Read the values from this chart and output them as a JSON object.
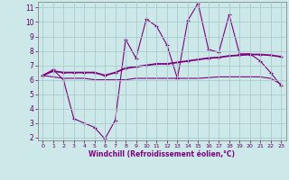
{
  "xlabel": "Windchill (Refroidissement éolien,°C)",
  "x": [
    0,
    1,
    2,
    3,
    4,
    5,
    6,
    7,
    8,
    9,
    10,
    11,
    12,
    13,
    14,
    15,
    16,
    17,
    18,
    19,
    20,
    21,
    22,
    23
  ],
  "line1": [
    6.3,
    6.7,
    6.0,
    3.3,
    3.0,
    2.7,
    1.9,
    3.2,
    8.8,
    7.5,
    10.2,
    9.7,
    8.4,
    6.1,
    10.1,
    11.3,
    8.1,
    7.9,
    10.5,
    7.8,
    7.8,
    7.3,
    6.5,
    5.6
  ],
  "line2": [
    6.3,
    6.6,
    6.5,
    6.5,
    6.5,
    6.5,
    6.3,
    6.5,
    6.8,
    6.9,
    7.0,
    7.1,
    7.1,
    7.2,
    7.3,
    7.4,
    7.5,
    7.55,
    7.65,
    7.7,
    7.75,
    7.75,
    7.7,
    7.6
  ],
  "line3": [
    6.3,
    6.2,
    6.1,
    6.1,
    6.1,
    6.0,
    6.0,
    6.0,
    6.0,
    6.1,
    6.1,
    6.1,
    6.1,
    6.1,
    6.1,
    6.1,
    6.15,
    6.2,
    6.2,
    6.2,
    6.2,
    6.2,
    6.1,
    5.7
  ],
  "line_color": "#800080",
  "bg_color": "#cce8e8",
  "grid_color": "#aacccc",
  "ylim": [
    1.8,
    11.4
  ],
  "xlim": [
    -0.5,
    23.5
  ],
  "yticks": [
    2,
    3,
    4,
    5,
    6,
    7,
    8,
    9,
    10,
    11
  ],
  "xticks": [
    0,
    1,
    2,
    3,
    4,
    5,
    6,
    7,
    8,
    9,
    10,
    11,
    12,
    13,
    14,
    15,
    16,
    17,
    18,
    19,
    20,
    21,
    22,
    23
  ]
}
